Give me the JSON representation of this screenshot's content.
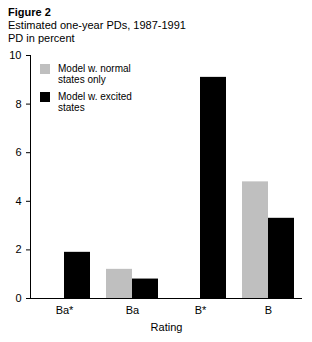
{
  "chart_data": {
    "type": "bar",
    "title": "Figure 2",
    "subtitle": "Estimated one-year PDs, 1987-1991",
    "y_label": "PD in percent",
    "x_label": "Rating",
    "categories": [
      "Ba*",
      "Ba",
      "B*",
      "B"
    ],
    "series": [
      {
        "name": "Model w. normal states only",
        "color": "#bfbfbf",
        "values": [
          null,
          1.2,
          null,
          4.8
        ]
      },
      {
        "name": "Model w. excited states",
        "color": "#000000",
        "values": [
          1.9,
          0.8,
          9.1,
          3.3
        ]
      }
    ],
    "ylim": [
      0,
      10
    ],
    "yticks": [
      0,
      2,
      4,
      6,
      8,
      10
    ],
    "legend": "top-left"
  }
}
